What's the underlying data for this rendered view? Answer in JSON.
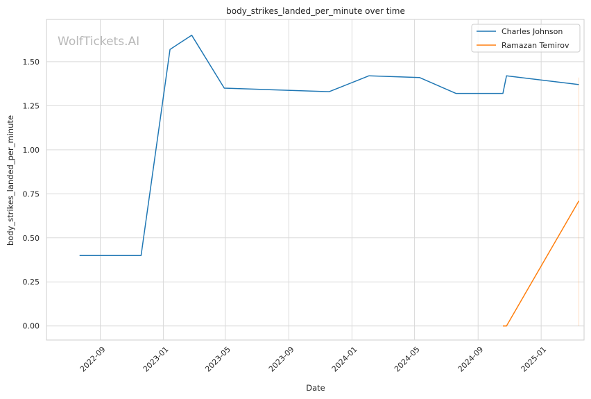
{
  "chart_data": {
    "type": "line",
    "title": "body_strikes_landed_per_minute over time",
    "xlabel": "Date",
    "ylabel": "body_strikes_landed_per_minute",
    "watermark": "WolfTickets.AI",
    "x_ticks": [
      "2022-09",
      "2023-01",
      "2023-05",
      "2023-09",
      "2024-01",
      "2024-05",
      "2024-09",
      "2025-01"
    ],
    "y_ticks": [
      "0.00",
      "0.25",
      "0.50",
      "0.75",
      "1.00",
      "1.25",
      "1.50"
    ],
    "xlim": [
      "2022-05-20",
      "2025-03-25"
    ],
    "ylim": [
      -0.08,
      1.74
    ],
    "grid": true,
    "legend_position": "top-right",
    "series": [
      {
        "name": "Charles Johnson",
        "color": "#1f77b4",
        "points": [
          {
            "x": "2022-07-23",
            "y": 0.4
          },
          {
            "x": "2022-11-19",
            "y": 0.4
          },
          {
            "x": "2023-01-14",
            "y": 1.57
          },
          {
            "x": "2023-02-25",
            "y": 1.65
          },
          {
            "x": "2023-04-29",
            "y": 1.35
          },
          {
            "x": "2023-11-18",
            "y": 1.33
          },
          {
            "x": "2024-02-03",
            "y": 1.42
          },
          {
            "x": "2024-05-11",
            "y": 1.41
          },
          {
            "x": "2024-07-20",
            "y": 1.32
          },
          {
            "x": "2024-10-19",
            "y": 1.32
          },
          {
            "x": "2024-10-26",
            "y": 1.42
          },
          {
            "x": "2025-03-15",
            "y": 1.37
          }
        ]
      },
      {
        "name": "Ramazan Temirov",
        "color": "#ff7f0e",
        "points": [
          {
            "x": "2024-10-19",
            "y": 0.0
          },
          {
            "x": "2024-10-26",
            "y": 0.0
          },
          {
            "x": "2025-03-15",
            "y": 0.71
          }
        ]
      }
    ]
  }
}
